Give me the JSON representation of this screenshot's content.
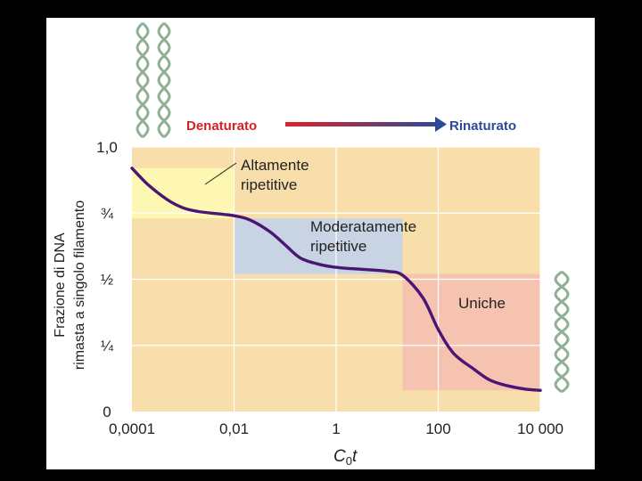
{
  "chart_data": {
    "type": "line",
    "title": "",
    "xlabel": "C0t",
    "xlabel_main": "C",
    "xlabel_sub": "0",
    "xlabel_var": "t",
    "ylabel_line1": "Frazione di DNA",
    "ylabel_line2": "rimasta a singolo filamento",
    "x_scale": "log",
    "xlim": [
      0.0001,
      10000
    ],
    "ylim": [
      0,
      1
    ],
    "x_ticks": [
      {
        "value": 0.0001,
        "label": "0,0001"
      },
      {
        "value": 0.01,
        "label": "0,01"
      },
      {
        "value": 1,
        "label": "1"
      },
      {
        "value": 100,
        "label": "100"
      },
      {
        "value": 10000,
        "label": "10 000"
      }
    ],
    "y_ticks": [
      {
        "value": 0,
        "label": "0"
      },
      {
        "value": 0.25,
        "label": "¼"
      },
      {
        "value": 0.5,
        "label": "½"
      },
      {
        "value": 0.75,
        "label": "¾"
      },
      {
        "value": 1,
        "label": "1,0"
      }
    ],
    "grid": true,
    "header": {
      "left": "Denaturato",
      "right": "Rinaturato"
    },
    "regions": [
      {
        "name": "Altamente ripetitive",
        "label_lines": [
          "Altamente",
          "ripetitive"
        ],
        "x_range": [
          0.0001,
          0.01
        ],
        "y_range": [
          0.73,
          0.92
        ],
        "color": "#fdf7b3"
      },
      {
        "name": "Moderatamente ripetitive",
        "label_lines": [
          "Moderatamente",
          "ripetitive"
        ],
        "x_range": [
          0.01,
          20
        ],
        "y_range": [
          0.52,
          0.73
        ],
        "color": "#c8d3e3"
      },
      {
        "name": "Uniche",
        "label_lines": [
          "Uniche"
        ],
        "x_range": [
          20,
          10000
        ],
        "y_range": [
          0.08,
          0.52
        ],
        "color": "#f6c3b1"
      }
    ],
    "series": [
      {
        "color": "#4b1673",
        "x": [
          0.0001,
          0.0002,
          0.0005,
          0.001,
          0.002,
          0.005,
          0.01,
          0.02,
          0.05,
          0.1,
          0.2,
          0.5,
          1,
          2,
          5,
          10,
          20,
          50,
          100,
          200,
          500,
          1000,
          2000,
          5000,
          10000
        ],
        "y": [
          0.92,
          0.86,
          0.8,
          0.77,
          0.756,
          0.747,
          0.74,
          0.725,
          0.68,
          0.63,
          0.58,
          0.555,
          0.545,
          0.54,
          0.535,
          0.53,
          0.515,
          0.43,
          0.31,
          0.22,
          0.16,
          0.12,
          0.1,
          0.085,
          0.08
        ]
      }
    ],
    "plot_bg": "#f7deaa",
    "grid_color": "#ffffff"
  }
}
